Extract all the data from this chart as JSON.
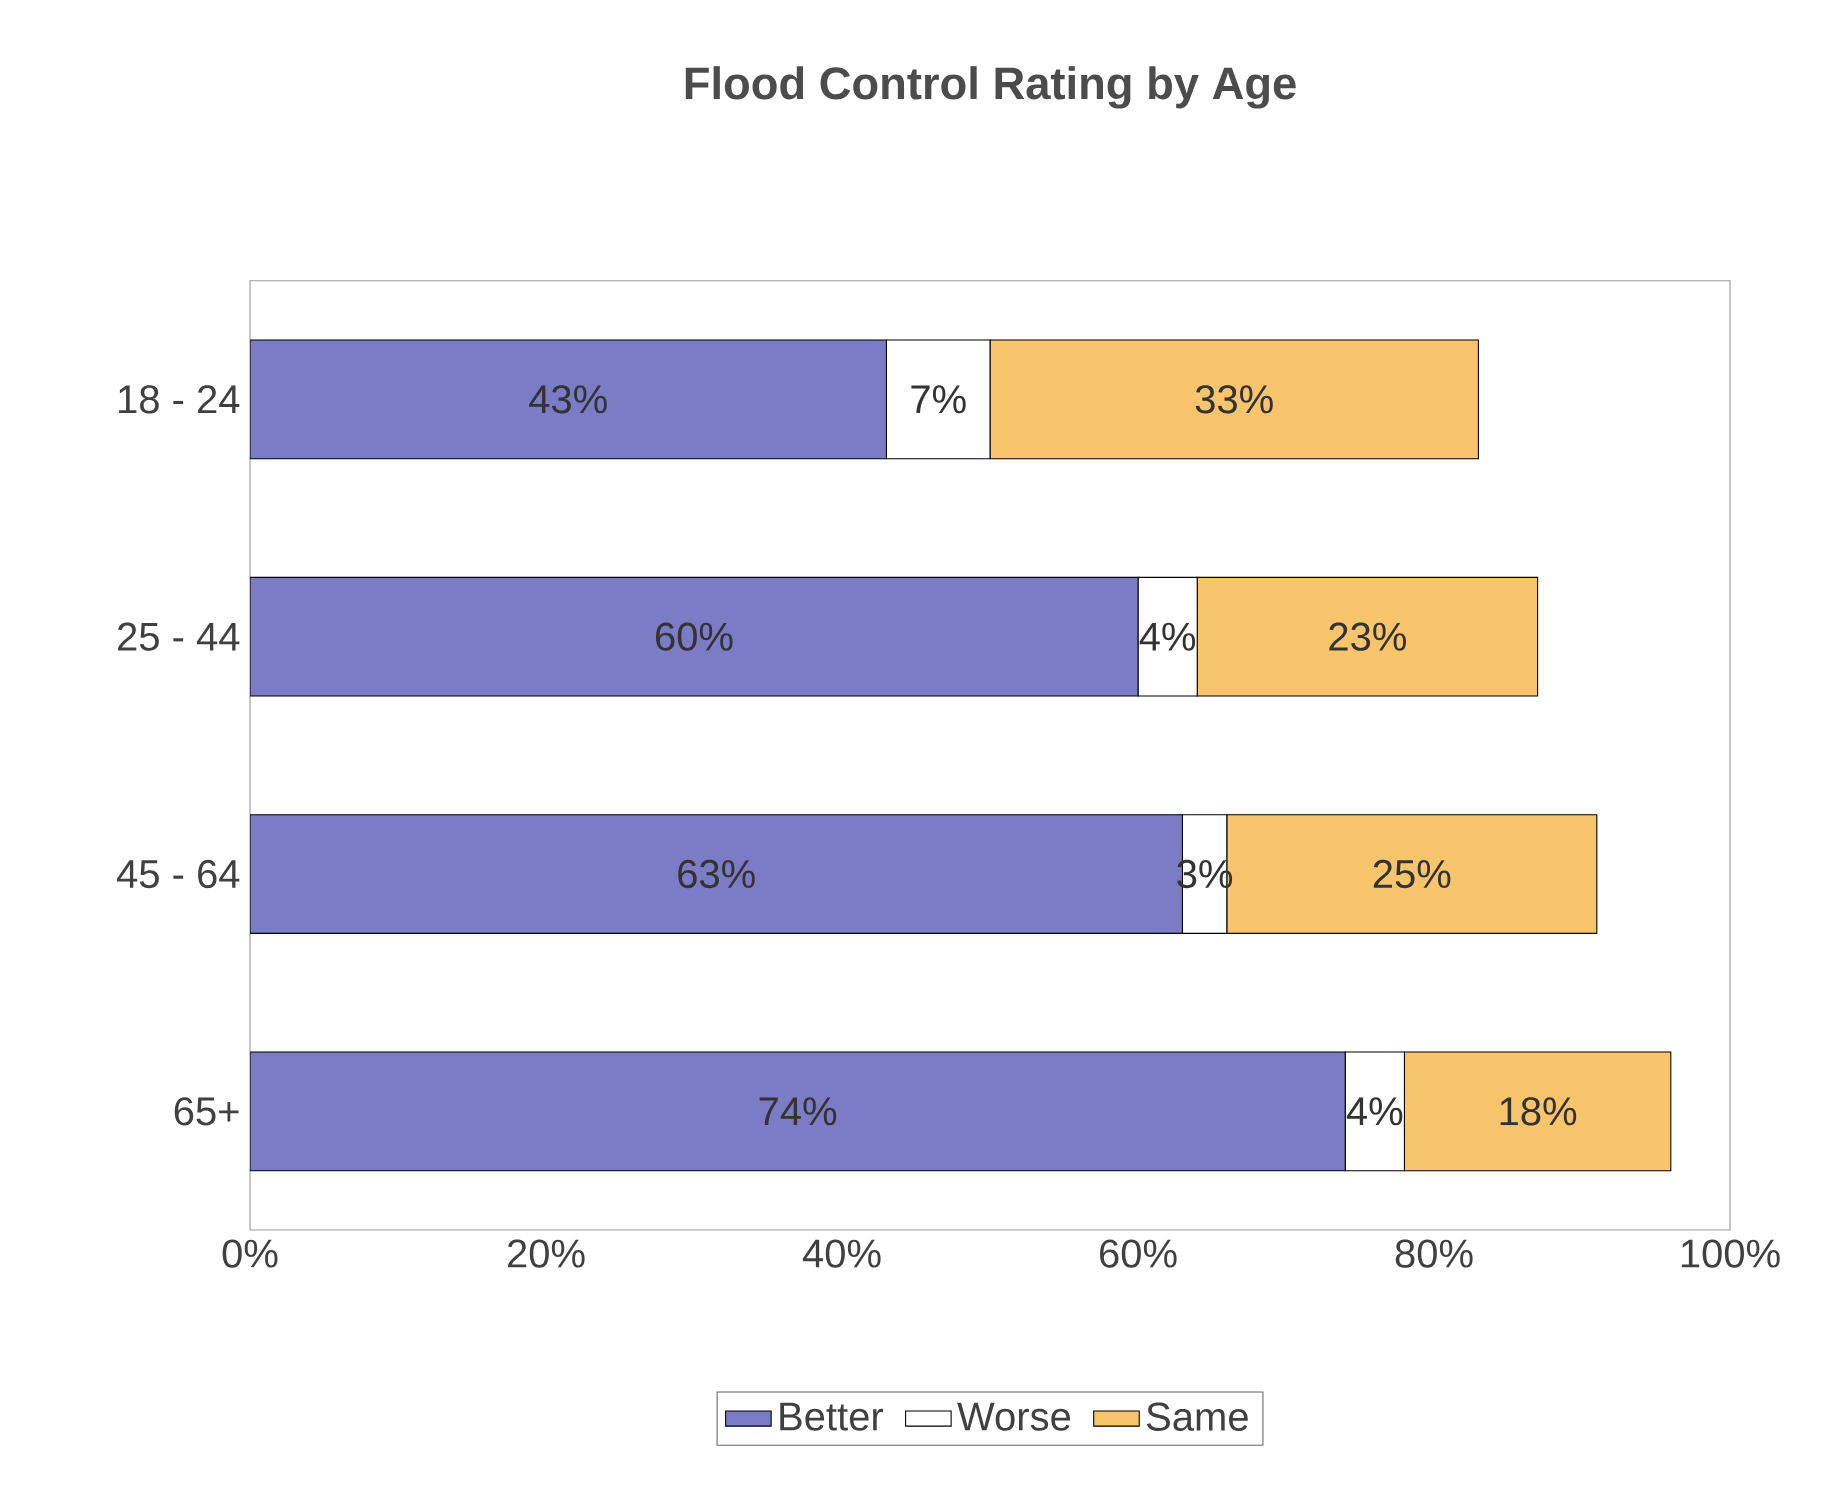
{
  "chart_data": {
    "type": "bar",
    "orientation": "horizontal",
    "stacked": true,
    "title": "Flood Control Rating by Age",
    "categories": [
      "18 - 24",
      "25 - 44",
      "45 - 64",
      "65+"
    ],
    "series": [
      {
        "name": "Better",
        "color": "#7b7bc6",
        "values": [
          43,
          60,
          63,
          74
        ],
        "value_labels": [
          "43%",
          "60%",
          "63%",
          "74%"
        ]
      },
      {
        "name": "Worse",
        "color": "#ffffff",
        "values": [
          7,
          4,
          3,
          4
        ],
        "value_labels": [
          "7%",
          "4%",
          "3%",
          "4%"
        ]
      },
      {
        "name": "Same",
        "color": "#f8c46c",
        "values": [
          33,
          23,
          25,
          18
        ],
        "value_labels": [
          "33%",
          "23%",
          "25%",
          "18%"
        ]
      }
    ],
    "xlim": [
      0,
      100
    ],
    "xticks": [
      {
        "value": 0,
        "label": "0%"
      },
      {
        "value": 20,
        "label": "20%"
      },
      {
        "value": 40,
        "label": "40%"
      },
      {
        "value": 60,
        "label": "60%"
      },
      {
        "value": 80,
        "label": "80%"
      },
      {
        "value": 100,
        "label": "100%"
      }
    ],
    "legend": "bottom"
  }
}
